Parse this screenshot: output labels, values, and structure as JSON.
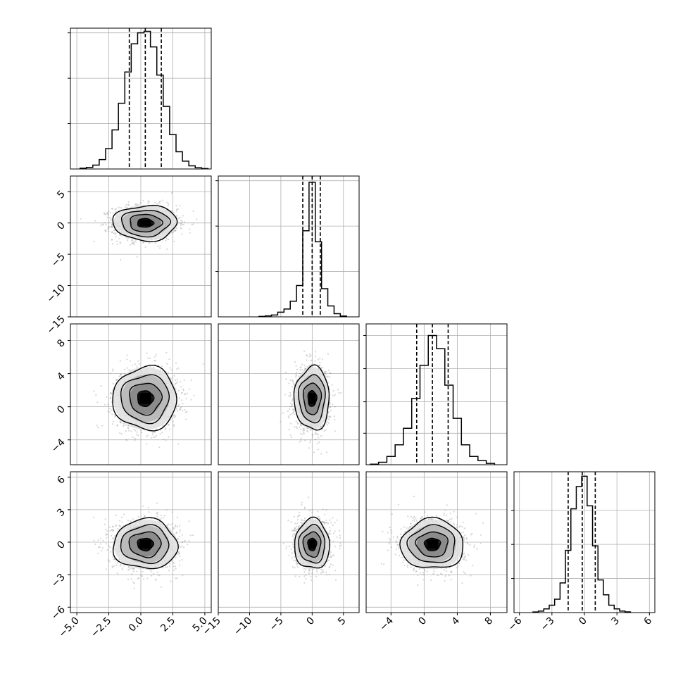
{
  "chart_data": {
    "type": "corner",
    "title": "",
    "grid": true,
    "colors": {
      "line": "#000000",
      "grid": "#b0b0b0",
      "quantile": "#000000",
      "scatter": "#8c8c8c",
      "fill_levels": [
        "#e0e0e0",
        "#b4b4b4",
        "#828282",
        "#000000"
      ]
    },
    "parameters": [
      {
        "label": "",
        "range": [
          -5.5,
          5.5
        ],
        "ticks": [
          -5.0,
          -2.5,
          0.0,
          2.5,
          5.0
        ],
        "tick_labels": [
          "−5.0",
          "−2.5",
          "0.0",
          "2.5",
          "5.0"
        ],
        "mean": 0.35,
        "sd": 1.25,
        "quantiles": [
          -0.9,
          0.35,
          1.6
        ],
        "hist_max_height": 0.9,
        "hist_yticks": [
          0.29,
          0.58,
          0.87
        ],
        "hist_bins": [
          {
            "x": -4.5,
            "h": 0.005
          },
          {
            "x": -4.0,
            "h": 0.01
          },
          {
            "x": -3.5,
            "h": 0.025
          },
          {
            "x": -3.0,
            "h": 0.06
          },
          {
            "x": -2.5,
            "h": 0.13
          },
          {
            "x": -2.0,
            "h": 0.25
          },
          {
            "x": -1.5,
            "h": 0.42
          },
          {
            "x": -1.0,
            "h": 0.62
          },
          {
            "x": -0.5,
            "h": 0.8
          },
          {
            "x": 0.0,
            "h": 0.87
          },
          {
            "x": 0.5,
            "h": 0.88
          },
          {
            "x": 1.0,
            "h": 0.78
          },
          {
            "x": 1.5,
            "h": 0.6
          },
          {
            "x": 2.0,
            "h": 0.4
          },
          {
            "x": 2.5,
            "h": 0.22
          },
          {
            "x": 3.0,
            "h": 0.11
          },
          {
            "x": 3.5,
            "h": 0.05
          },
          {
            "x": 4.0,
            "h": 0.02
          },
          {
            "x": 4.5,
            "h": 0.008
          },
          {
            "x": 5.0,
            "h": 0.003
          }
        ]
      },
      {
        "label": "",
        "range": [
          -15,
          7.5
        ],
        "ticks": [
          -15,
          -10,
          -5,
          0,
          5
        ],
        "tick_labels": [
          "−15",
          "−10",
          "−5",
          "0",
          "5"
        ],
        "mean": 0.0,
        "sd": 1.4,
        "quantiles": [
          -1.5,
          0.0,
          1.3
        ],
        "hist_max_height": 0.9,
        "hist_yticks": [
          0.29,
          0.58,
          0.87
        ],
        "hist_bins": [
          {
            "x": -8.0,
            "h": 0.003
          },
          {
            "x": -7.0,
            "h": 0.006
          },
          {
            "x": -6.0,
            "h": 0.012
          },
          {
            "x": -5.0,
            "h": 0.03
          },
          {
            "x": -4.0,
            "h": 0.05
          },
          {
            "x": -3.0,
            "h": 0.1
          },
          {
            "x": -2.0,
            "h": 0.2
          },
          {
            "x": -1.0,
            "h": 0.55
          },
          {
            "x": 0.0,
            "h": 0.86
          },
          {
            "x": 1.0,
            "h": 0.48
          },
          {
            "x": 2.0,
            "h": 0.18
          },
          {
            "x": 3.0,
            "h": 0.07
          },
          {
            "x": 4.0,
            "h": 0.02
          },
          {
            "x": 5.0,
            "h": 0.005
          }
        ]
      },
      {
        "label": "",
        "range": [
          -7,
          10
        ],
        "ticks": [
          -4,
          0,
          4,
          8
        ],
        "tick_labels": [
          "−4",
          "0",
          "4",
          "8"
        ],
        "mean": 1.0,
        "sd": 1.9,
        "quantiles": [
          -0.9,
          1.0,
          2.9
        ],
        "hist_max_height": 0.85,
        "hist_yticks": [
          0.19,
          0.38,
          0.58,
          0.78
        ],
        "hist_bins": [
          {
            "x": -6.0,
            "h": 0.003
          },
          {
            "x": -5.0,
            "h": 0.015
          },
          {
            "x": -4.0,
            "h": 0.05
          },
          {
            "x": -3.0,
            "h": 0.12
          },
          {
            "x": -2.0,
            "h": 0.22
          },
          {
            "x": -1.0,
            "h": 0.4
          },
          {
            "x": 0.0,
            "h": 0.6
          },
          {
            "x": 1.0,
            "h": 0.78
          },
          {
            "x": 2.0,
            "h": 0.7
          },
          {
            "x": 3.0,
            "h": 0.48
          },
          {
            "x": 4.0,
            "h": 0.28
          },
          {
            "x": 5.0,
            "h": 0.12
          },
          {
            "x": 6.0,
            "h": 0.05
          },
          {
            "x": 7.0,
            "h": 0.025
          },
          {
            "x": 8.0,
            "h": 0.008
          }
        ]
      },
      {
        "label": "",
        "range": [
          -6.5,
          6.5
        ],
        "ticks": [
          -6,
          -3,
          0,
          3,
          6
        ],
        "tick_labels": [
          "−6",
          "−3",
          "0",
          "3",
          "6"
        ],
        "mean": -0.2,
        "sd": 1.15,
        "quantiles": [
          -1.5,
          -0.2,
          1.0
        ],
        "hist_max_height": 0.95,
        "hist_yticks": [
          0.23,
          0.46,
          0.69
        ],
        "hist_bins": [
          {
            "x": -4.5,
            "h": 0.004
          },
          {
            "x": -4.0,
            "h": 0.01
          },
          {
            "x": -3.5,
            "h": 0.025
          },
          {
            "x": -3.0,
            "h": 0.05
          },
          {
            "x": -2.5,
            "h": 0.09
          },
          {
            "x": -2.0,
            "h": 0.2
          },
          {
            "x": -1.5,
            "h": 0.42
          },
          {
            "x": -1.0,
            "h": 0.7
          },
          {
            "x": -0.5,
            "h": 0.85
          },
          {
            "x": 0.0,
            "h": 0.92
          },
          {
            "x": 0.5,
            "h": 0.72
          },
          {
            "x": 1.0,
            "h": 0.45
          },
          {
            "x": 1.5,
            "h": 0.22
          },
          {
            "x": 2.0,
            "h": 0.12
          },
          {
            "x": 2.5,
            "h": 0.05
          },
          {
            "x": 3.0,
            "h": 0.025
          },
          {
            "x": 3.5,
            "h": 0.01
          },
          {
            "x": 4.0,
            "h": 0.005
          }
        ]
      }
    ],
    "scatter_points_per_panel": 1400,
    "contour_levels_sigma": [
      0.5,
      1.0,
      1.5,
      2.0
    ]
  }
}
